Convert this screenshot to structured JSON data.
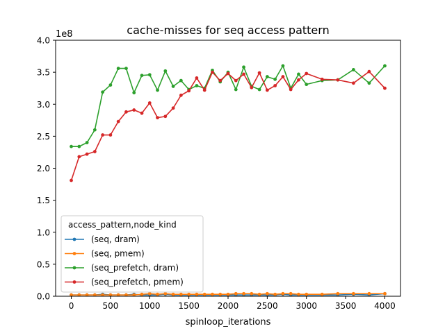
{
  "chart_data": {
    "type": "line",
    "title": "cache-misses for seq access pattern",
    "xlabel": "spinloop_iterations",
    "ylabel": "",
    "y_scale_label": "1e8",
    "y_scale": 100000000,
    "xlim": [
      -200,
      4200
    ],
    "ylim": [
      0,
      4.0
    ],
    "x_ticks": [
      0,
      500,
      1000,
      1500,
      2000,
      2500,
      3000,
      3500,
      4000
    ],
    "y_ticks": [
      0.0,
      0.5,
      1.0,
      1.5,
      2.0,
      2.5,
      3.0,
      3.5,
      4.0
    ],
    "x_tick_labels": [
      "0",
      "500",
      "1000",
      "1500",
      "2000",
      "2500",
      "3000",
      "3500",
      "4000"
    ],
    "y_tick_labels": [
      "0.0",
      "0.5",
      "1.0",
      "1.5",
      "2.0",
      "2.5",
      "3.0",
      "3.5",
      "4.0"
    ],
    "grid": false,
    "legend": {
      "title": "access_pattern,node_kind",
      "placement": "lower-left"
    },
    "series": [
      {
        "name": "(seq, dram)",
        "color": "#1f77b4",
        "x": [
          0,
          100,
          200,
          300,
          400,
          500,
          600,
          700,
          800,
          900,
          1000,
          1100,
          1200,
          1300,
          1400,
          1500,
          1600,
          1700,
          1800,
          1900,
          2000,
          2100,
          2200,
          2300,
          2400,
          2500,
          2600,
          2700,
          2800,
          2900,
          3000,
          3200,
          3400,
          3600,
          3800,
          4000
        ],
        "y": [
          0.02,
          0.02,
          0.02,
          0.02,
          0.03,
          0.02,
          0.02,
          0.02,
          0.03,
          0.02,
          0.02,
          0.02,
          0.03,
          0.02,
          0.02,
          0.02,
          0.02,
          0.02,
          0.02,
          0.02,
          0.02,
          0.02,
          0.02,
          0.02,
          0.02,
          0.02,
          0.02,
          0.03,
          0.02,
          0.02,
          0.02,
          0.02,
          0.02,
          0.03,
          0.02,
          0.04
        ]
      },
      {
        "name": "(seq, pmem)",
        "color": "#ff7f0e",
        "x": [
          0,
          100,
          200,
          300,
          400,
          500,
          600,
          700,
          800,
          900,
          1000,
          1100,
          1200,
          1300,
          1400,
          1500,
          1600,
          1700,
          1800,
          1900,
          2000,
          2100,
          2200,
          2300,
          2400,
          2500,
          2600,
          2700,
          2800,
          2900,
          3000,
          3200,
          3400,
          3600,
          3800,
          4000
        ],
        "y": [
          0.02,
          0.02,
          0.02,
          0.02,
          0.02,
          0.02,
          0.02,
          0.02,
          0.02,
          0.03,
          0.04,
          0.03,
          0.04,
          0.03,
          0.03,
          0.03,
          0.03,
          0.03,
          0.03,
          0.03,
          0.03,
          0.04,
          0.04,
          0.04,
          0.03,
          0.04,
          0.03,
          0.04,
          0.04,
          0.03,
          0.03,
          0.03,
          0.04,
          0.04,
          0.04,
          0.04
        ]
      },
      {
        "name": "(seq_prefetch, dram)",
        "color": "#2ca02c",
        "x": [
          0,
          100,
          200,
          300,
          400,
          500,
          600,
          700,
          800,
          900,
          1000,
          1100,
          1200,
          1300,
          1400,
          1500,
          1600,
          1700,
          1800,
          1900,
          2000,
          2100,
          2200,
          2300,
          2400,
          2500,
          2600,
          2700,
          2800,
          2900,
          3000,
          3200,
          3400,
          3600,
          3800,
          4000
        ],
        "y": [
          2.34,
          2.34,
          2.4,
          2.6,
          3.19,
          3.3,
          3.56,
          3.56,
          3.18,
          3.45,
          3.46,
          3.22,
          3.52,
          3.28,
          3.37,
          3.23,
          3.29,
          3.25,
          3.53,
          3.35,
          3.5,
          3.23,
          3.58,
          3.28,
          3.23,
          3.43,
          3.39,
          3.6,
          3.25,
          3.47,
          3.31,
          3.37,
          3.38,
          3.54,
          3.33,
          3.6
        ]
      },
      {
        "name": "(seq_prefetch, pmem)",
        "color": "#d62728",
        "x": [
          0,
          100,
          200,
          300,
          400,
          500,
          600,
          700,
          800,
          900,
          1000,
          1100,
          1200,
          1300,
          1400,
          1500,
          1600,
          1700,
          1800,
          1900,
          2000,
          2100,
          2200,
          2300,
          2400,
          2500,
          2600,
          2700,
          2800,
          2900,
          3000,
          3200,
          3400,
          3600,
          3800,
          4000
        ],
        "y": [
          1.81,
          2.18,
          2.22,
          2.26,
          2.52,
          2.52,
          2.73,
          2.88,
          2.91,
          2.86,
          3.02,
          2.79,
          2.81,
          2.94,
          3.14,
          3.21,
          3.41,
          3.22,
          3.5,
          3.37,
          3.48,
          3.37,
          3.47,
          3.26,
          3.49,
          3.22,
          3.29,
          3.43,
          3.23,
          3.38,
          3.48,
          3.39,
          3.38,
          3.33,
          3.51,
          3.25
        ]
      }
    ]
  }
}
